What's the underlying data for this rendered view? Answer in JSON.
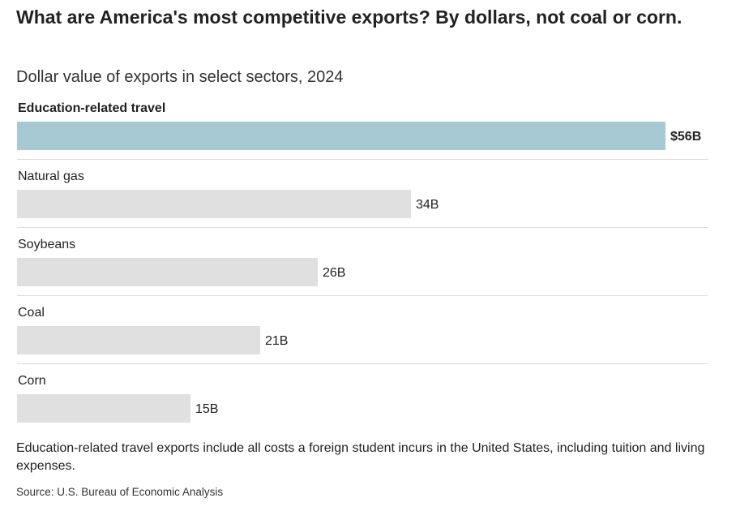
{
  "header": {
    "title": "What are America's most competitive exports? By dollars, not coal or corn.",
    "subtitle": "Dollar value of exports in select sectors, 2024"
  },
  "chart_data": {
    "type": "bar",
    "orientation": "horizontal",
    "categories": [
      "Education-related travel",
      "Natural gas",
      "Soybeans",
      "Coal",
      "Corn"
    ],
    "values": [
      56,
      34,
      26,
      21,
      15
    ],
    "value_labels": [
      "$56B",
      "34B",
      "26B",
      "21B",
      "15B"
    ],
    "unit": "billion USD",
    "highlight_index": 0,
    "xlim": [
      0,
      56
    ],
    "grid": false,
    "legend": "none"
  },
  "colors": {
    "highlight_bar": "#a7c9d3",
    "default_bar": "#e0e0e0",
    "divider": "#dcdcdc"
  },
  "footer": {
    "note": "Education-related travel exports include all costs a foreign student incurs in the United States, including tuition and living expenses.",
    "source": "Source: U.S. Bureau of Economic Analysis"
  }
}
